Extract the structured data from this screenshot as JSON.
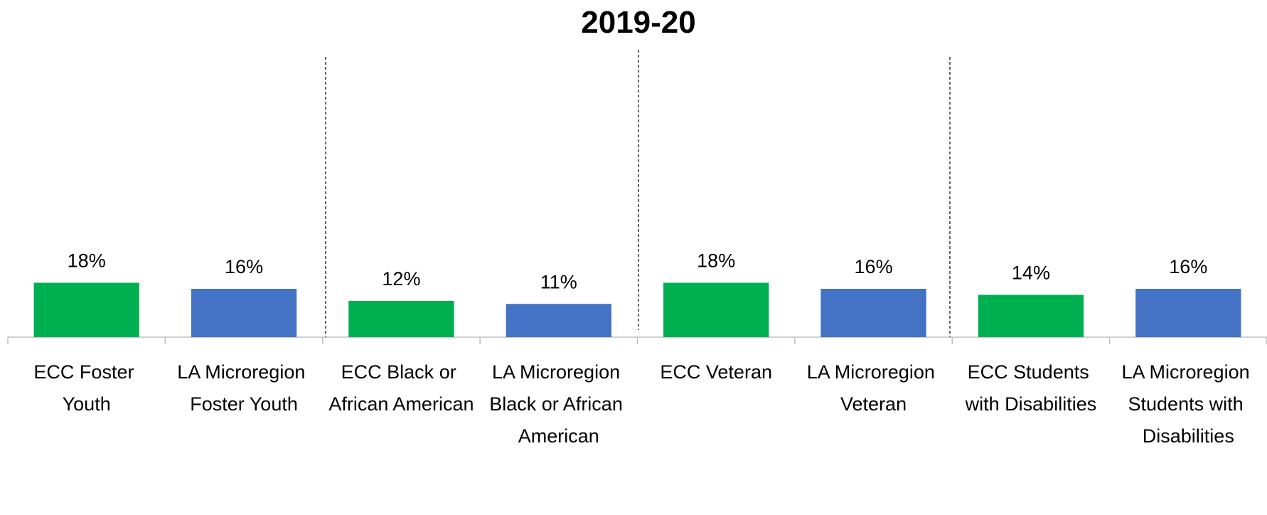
{
  "chart_data": {
    "type": "bar",
    "title": "2019-20",
    "categories": [
      "ECC Foster Youth",
      "LA Microregion Foster Youth",
      "ECC Black or African American",
      "LA Microregion Black or African American",
      "ECC Veteran",
      "LA Microregion Veteran",
      "ECC Students with Disabilities",
      "LA Microregion Students with Disabilities"
    ],
    "values": [
      18,
      16,
      12,
      11,
      18,
      16,
      14,
      16
    ],
    "value_labels": [
      "18%",
      "16%",
      "12%",
      "11%",
      "18%",
      "16%",
      "14%",
      "16%"
    ],
    "colors": [
      "#00b050",
      "#4472c4",
      "#00b050",
      "#4472c4",
      "#00b050",
      "#4472c4",
      "#00b050",
      "#4472c4"
    ],
    "ylim": [
      0,
      100
    ]
  }
}
